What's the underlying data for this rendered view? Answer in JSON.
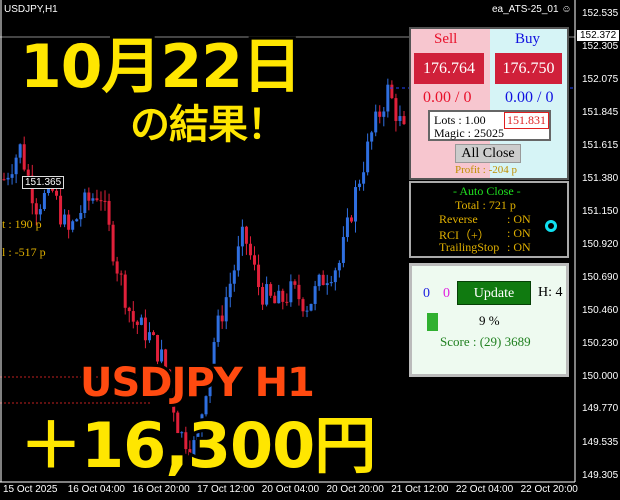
{
  "window": {
    "symbol": "USDJPY,H1",
    "ea_name": "ea_ATS-25_01",
    "ea_icon": "smiley-icon"
  },
  "chart_data": {
    "type": "candlestick",
    "y_ticks": [
      "152.535",
      "152.305",
      "152.075",
      "151.845",
      "151.615",
      "151.380",
      "151.150",
      "150.920",
      "150.690",
      "150.460",
      "150.230",
      "150.000",
      "149.770",
      "149.535",
      "149.305"
    ],
    "current_price": "152.372",
    "x_ticks": [
      "15 Oct 2025",
      "16 Oct 04:00",
      "16 Oct 20:00",
      "17 Oct 12:00",
      "20 Oct 04:00",
      "20 Oct 20:00",
      "21 Oct 12:00",
      "22 Oct 04:00",
      "22 Oct 20:00"
    ],
    "ylim": [
      149.305,
      152.535
    ],
    "approx_close_path": [
      151.38,
      151.6,
      151.2,
      151.3,
      151.0,
      151.2,
      151.3,
      150.8,
      150.4,
      150.3,
      150.1,
      149.6,
      149.5,
      150.2,
      150.6,
      151.0,
      150.6,
      150.5,
      150.6,
      150.5,
      150.7,
      150.8,
      151.3,
      151.7,
      152.0,
      151.7
    ],
    "colors": {
      "up": "#2f6fe0",
      "down": "#e0203a"
    },
    "price_tag": "151.365",
    "left_labels": [
      "t : 190 p",
      "l : -517 p"
    ]
  },
  "overlay": {
    "date": "10月22日",
    "result": "の結果！",
    "pair": "USDJPY H1",
    "profit": "＋16,300円"
  },
  "trade_panel": {
    "sell_label": "Sell",
    "buy_label": "Buy",
    "sell_price": "176.764",
    "buy_price": "176.750",
    "sell_pos": "0.00 / 0",
    "buy_pos": "0.00 / 0",
    "lots": "Lots : 1.00",
    "magic": "Magic : 25025",
    "price_box": "151.831",
    "all_close": "All Close",
    "profit": "Profit : -204 p"
  },
  "status_panel": {
    "total": "Total : 721 p",
    "auto_close": "- Auto Close -",
    "reverse": "Reverse",
    "reverse_val": ": ON",
    "rci": "RCI（+）",
    "rci_val": ": ON",
    "trailing": "TrailingStop",
    "trailing_val": ": ON",
    "indicator_icon": "circle-icon"
  },
  "score_panel": {
    "count_blue": "0",
    "count_magenta": "0",
    "update": "Update",
    "h": "H: 4",
    "percent": "9 %",
    "progress": 0.09,
    "score": "Score : (29) 3689"
  }
}
